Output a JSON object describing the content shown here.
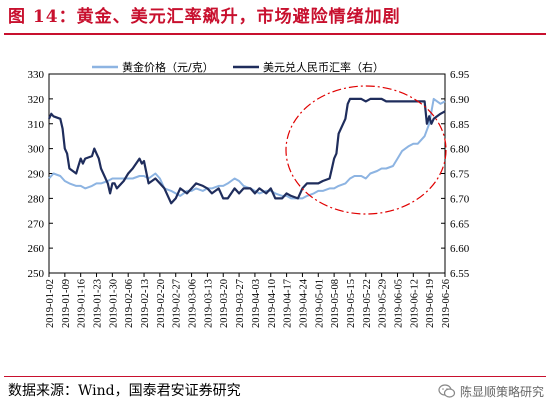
{
  "title": "图 14：黄金、美元汇率飙升，市场避险情绪加剧",
  "source": "数据来源：Wind，国泰君安证券研究",
  "watermark": "陈显顺策略研究",
  "colors": {
    "gold": "#8db4e2",
    "fx": "#1f2d5c",
    "title": "#c8102e",
    "ellipse": "#e00000"
  },
  "chart_data": {
    "type": "line",
    "title": "",
    "legend": [
      "黄金价格（元/克）",
      "美元兑人民币汇率（右）"
    ],
    "legend_position": "top",
    "grid": false,
    "y_left": {
      "label": "",
      "ticks": [
        250,
        260,
        270,
        280,
        290,
        300,
        310,
        320,
        330
      ],
      "range": [
        250,
        330
      ]
    },
    "y_right": {
      "label": "",
      "ticks": [
        "6.55",
        "6.60",
        "6.65",
        "6.70",
        "6.75",
        "6.80",
        "6.85",
        "6.90",
        "6.95"
      ],
      "range": [
        6.55,
        6.95
      ]
    },
    "x_ticks": [
      "2019-01-02",
      "2019-01-09",
      "2019-01-16",
      "2019-01-23",
      "2019-01-30",
      "2019-02-06",
      "2019-02-13",
      "2019-02-20",
      "2019-02-27",
      "2019-03-06",
      "2019-03-13",
      "2019-03-20",
      "2019-03-27",
      "2019-04-03",
      "2019-04-10",
      "2019-04-17",
      "2019-04-24",
      "2019-05-01",
      "2019-05-08",
      "2019-05-15",
      "2019-05-22",
      "2019-05-29",
      "2019-06-05",
      "2019-06-12",
      "2019-06-19",
      "2019-06-26"
    ],
    "series": [
      {
        "name": "黄金价格（元/克）",
        "axis": "left",
        "x": [
          "2019-01-02",
          "2019-01-04",
          "2019-01-07",
          "2019-01-09",
          "2019-01-11",
          "2019-01-14",
          "2019-01-16",
          "2019-01-18",
          "2019-01-21",
          "2019-01-23",
          "2019-01-25",
          "2019-01-28",
          "2019-01-30",
          "2019-02-01",
          "2019-02-04",
          "2019-02-06",
          "2019-02-08",
          "2019-02-11",
          "2019-02-13",
          "2019-02-15",
          "2019-02-18",
          "2019-02-20",
          "2019-02-22",
          "2019-02-25",
          "2019-02-27",
          "2019-03-01",
          "2019-03-04",
          "2019-03-06",
          "2019-03-08",
          "2019-03-11",
          "2019-03-13",
          "2019-03-15",
          "2019-03-18",
          "2019-03-20",
          "2019-03-22",
          "2019-03-25",
          "2019-03-27",
          "2019-03-29",
          "2019-04-01",
          "2019-04-03",
          "2019-04-05",
          "2019-04-08",
          "2019-04-10",
          "2019-04-12",
          "2019-04-15",
          "2019-04-17",
          "2019-04-19",
          "2019-04-22",
          "2019-04-24",
          "2019-04-26",
          "2019-04-29",
          "2019-05-01",
          "2019-05-03",
          "2019-05-06",
          "2019-05-08",
          "2019-05-10",
          "2019-05-13",
          "2019-05-15",
          "2019-05-17",
          "2019-05-20",
          "2019-05-22",
          "2019-05-24",
          "2019-05-27",
          "2019-05-29",
          "2019-05-31",
          "2019-06-03",
          "2019-06-05",
          "2019-06-07",
          "2019-06-10",
          "2019-06-12",
          "2019-06-14",
          "2019-06-17",
          "2019-06-19",
          "2019-06-21",
          "2019-06-24",
          "2019-06-26"
        ],
        "values": [
          288,
          290,
          289,
          287,
          286,
          285,
          285,
          284,
          285,
          286,
          286,
          287,
          288,
          288,
          288,
          288,
          288,
          289,
          289,
          288,
          290,
          288,
          284,
          283,
          282,
          281,
          283,
          283,
          284,
          283,
          284,
          284,
          285,
          285,
          286,
          288,
          287,
          285,
          284,
          283,
          282,
          283,
          283,
          282,
          281,
          281,
          280,
          280,
          280,
          281,
          282,
          283,
          283,
          284,
          284,
          285,
          286,
          288,
          289,
          289,
          288,
          290,
          291,
          292,
          292,
          293,
          296,
          299,
          301,
          302,
          302,
          305,
          310,
          320,
          318,
          319
        ]
      },
      {
        "name": "美元兑人民币汇率（右）",
        "axis": "right",
        "x": [
          "2019-01-02",
          "2019-01-03",
          "2019-01-04",
          "2019-01-07",
          "2019-01-08",
          "2019-01-09",
          "2019-01-10",
          "2019-01-11",
          "2019-01-14",
          "2019-01-15",
          "2019-01-16",
          "2019-01-17",
          "2019-01-18",
          "2019-01-21",
          "2019-01-22",
          "2019-01-23",
          "2019-01-24",
          "2019-01-25",
          "2019-01-28",
          "2019-01-29",
          "2019-01-30",
          "2019-01-31",
          "2019-02-01",
          "2019-02-04",
          "2019-02-06",
          "2019-02-08",
          "2019-02-11",
          "2019-02-12",
          "2019-02-13",
          "2019-02-15",
          "2019-02-18",
          "2019-02-20",
          "2019-02-22",
          "2019-02-25",
          "2019-02-27",
          "2019-03-01",
          "2019-03-04",
          "2019-03-06",
          "2019-03-08",
          "2019-03-11",
          "2019-03-13",
          "2019-03-15",
          "2019-03-18",
          "2019-03-20",
          "2019-03-22",
          "2019-03-25",
          "2019-03-27",
          "2019-03-29",
          "2019-04-01",
          "2019-04-03",
          "2019-04-05",
          "2019-04-08",
          "2019-04-10",
          "2019-04-12",
          "2019-04-15",
          "2019-04-17",
          "2019-04-19",
          "2019-04-22",
          "2019-04-24",
          "2019-04-26",
          "2019-04-29",
          "2019-05-01",
          "2019-05-03",
          "2019-05-06",
          "2019-05-07",
          "2019-05-08",
          "2019-05-09",
          "2019-05-10",
          "2019-05-13",
          "2019-05-14",
          "2019-05-15",
          "2019-05-17",
          "2019-05-20",
          "2019-05-22",
          "2019-05-24",
          "2019-05-27",
          "2019-05-29",
          "2019-05-31",
          "2019-06-03",
          "2019-06-05",
          "2019-06-07",
          "2019-06-10",
          "2019-06-12",
          "2019-06-14",
          "2019-06-17",
          "2019-06-18",
          "2019-06-19",
          "2019-06-20",
          "2019-06-21",
          "2019-06-24",
          "2019-06-26"
        ],
        "values": [
          6.86,
          6.87,
          6.865,
          6.86,
          6.84,
          6.8,
          6.79,
          6.76,
          6.75,
          6.765,
          6.78,
          6.77,
          6.78,
          6.785,
          6.8,
          6.79,
          6.78,
          6.76,
          6.73,
          6.71,
          6.73,
          6.73,
          6.72,
          6.735,
          6.75,
          6.76,
          6.78,
          6.77,
          6.775,
          6.73,
          6.74,
          6.73,
          6.72,
          6.69,
          6.7,
          6.72,
          6.71,
          6.72,
          6.73,
          6.725,
          6.72,
          6.71,
          6.72,
          6.7,
          6.7,
          6.72,
          6.71,
          6.72,
          6.72,
          6.71,
          6.72,
          6.71,
          6.72,
          6.7,
          6.7,
          6.71,
          6.705,
          6.7,
          6.72,
          6.73,
          6.73,
          6.73,
          6.735,
          6.74,
          6.76,
          6.78,
          6.79,
          6.83,
          6.86,
          6.89,
          6.9,
          6.9,
          6.9,
          6.895,
          6.9,
          6.9,
          6.9,
          6.895,
          6.895,
          6.895,
          6.895,
          6.895,
          6.895,
          6.895,
          6.895,
          6.85,
          6.865,
          6.85,
          6.86,
          6.87,
          6.875
        ]
      }
    ],
    "annotation": {
      "shape": "dashed-ellipse",
      "from": "2019-04-24",
      "to": "2019-06-26"
    }
  }
}
